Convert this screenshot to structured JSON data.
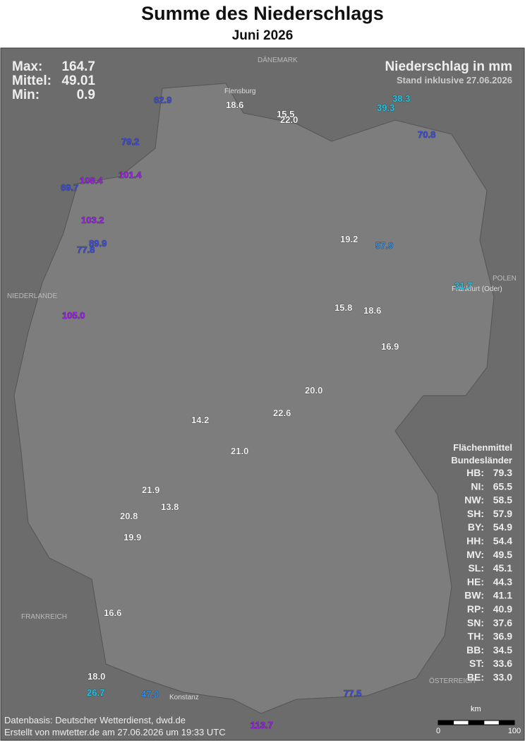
{
  "header": {
    "title": "Summe des Niederschlags",
    "subtitle": "Juni 2026"
  },
  "stats": [
    {
      "label": "Max:",
      "value": "164.7"
    },
    {
      "label": "Mittel:",
      "value": "49.01"
    },
    {
      "label": "Min:",
      "value": "0.9"
    }
  ],
  "legend": {
    "title": "Niederschlag in mm",
    "stand": "Stand inklusive 27.06.2026"
  },
  "states": {
    "heading": [
      "Flächenmittel",
      "Bundesländer"
    ],
    "rows": [
      {
        "code": "HB:",
        "value": "79.3"
      },
      {
        "code": "NI:",
        "value": "65.5"
      },
      {
        "code": "NW:",
        "value": "58.5"
      },
      {
        "code": "SH:",
        "value": "57.9"
      },
      {
        "code": "BY:",
        "value": "54.9"
      },
      {
        "code": "HH:",
        "value": "54.4"
      },
      {
        "code": "MV:",
        "value": "49.5"
      },
      {
        "code": "SL:",
        "value": "45.1"
      },
      {
        "code": "HE:",
        "value": "44.3"
      },
      {
        "code": "BW:",
        "value": "41.1"
      },
      {
        "code": "RP:",
        "value": "40.9"
      },
      {
        "code": "SN:",
        "value": "37.6"
      },
      {
        "code": "TH:",
        "value": "36.9"
      },
      {
        "code": "BB:",
        "value": "34.5"
      },
      {
        "code": "ST:",
        "value": "33.6"
      },
      {
        "code": "BE:",
        "value": "33.0"
      }
    ]
  },
  "countries": [
    "DÄNEMARK",
    "NIEDERLANDE",
    "POLEN",
    "FRANKREICH",
    "ÖSTERREICH"
  ],
  "cities": [
    "Flensburg",
    "Frankfurt (Oder)",
    "Konstanz"
  ],
  "stations": [
    "62.9",
    "18.6",
    "15.5",
    "22.0",
    "79.2",
    "38.3",
    "39.3",
    "70.8",
    "108.4",
    "101.4",
    "69.7",
    "103.2",
    "77.8",
    "89.9",
    "105.0",
    "19.2",
    "15.8",
    "18.6",
    "16.9",
    "21.9",
    "20.8",
    "19.9",
    "16.6",
    "18.0",
    "47.0",
    "113.7",
    "77.5",
    "22.6",
    "14.2",
    "13.8",
    "21.0",
    "20.0",
    "26.7",
    "57.9",
    "31.7"
  ],
  "scale": {
    "unit": "km",
    "ticks": [
      "0",
      "100"
    ]
  },
  "footer": [
    "Datenbasis: Deutscher Wetterdienst, dwd.de",
    "Erstellt von mwtetter.de am 27.06.2026 um 19:33 UTC"
  ]
}
